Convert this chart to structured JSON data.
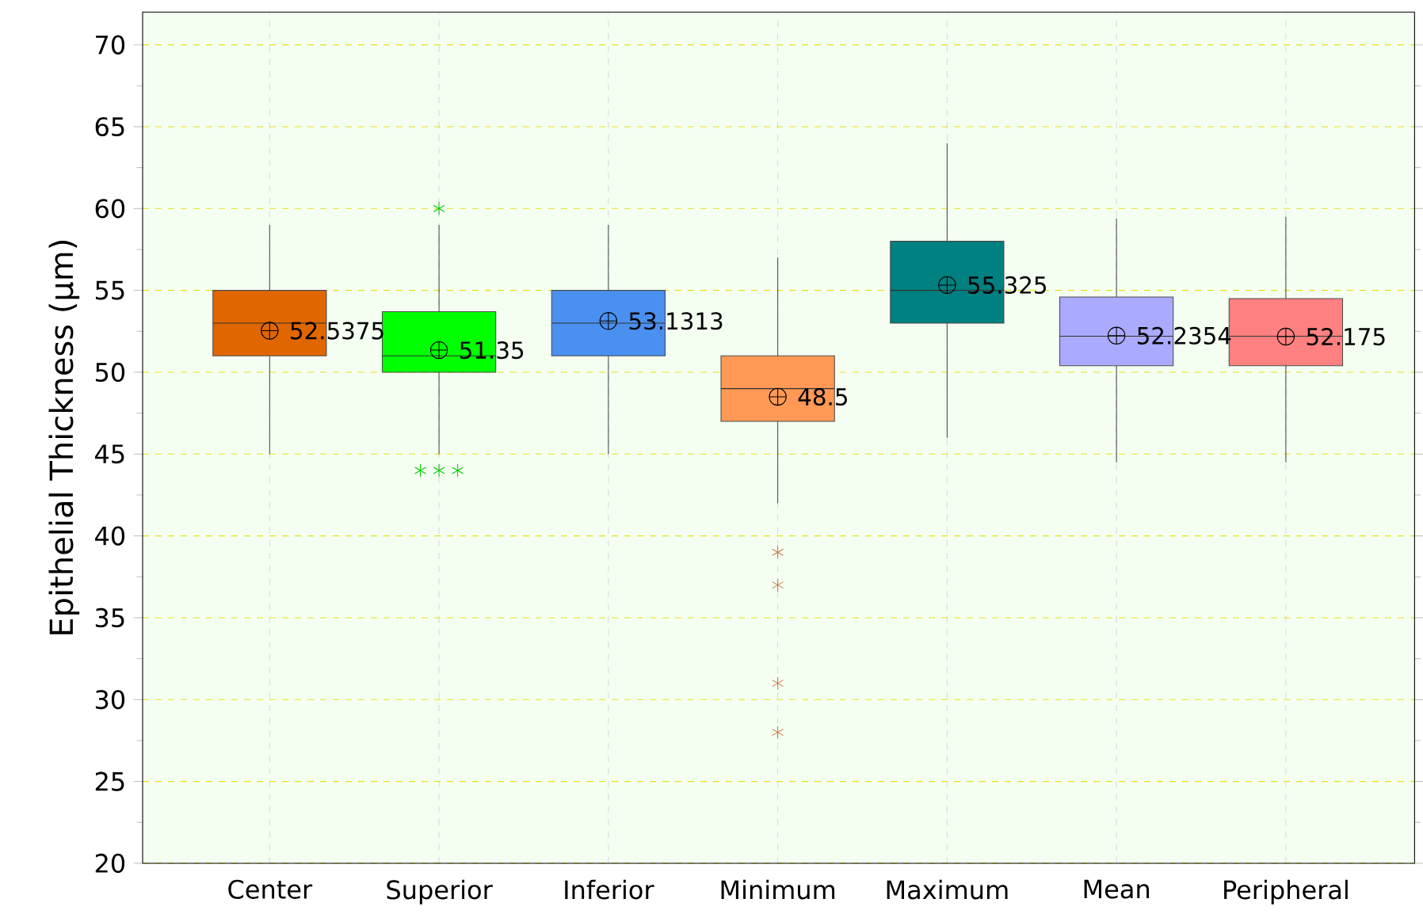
{
  "chart_data": {
    "type": "box",
    "ylabel": "Epithelial Thickness (µm)",
    "categories": [
      "Center",
      "Superior",
      "Inferior",
      "Minimum",
      "Maximum",
      "Mean",
      "Peripheral"
    ],
    "colors": [
      "#e06600",
      "#00ff00",
      "#4a90f0",
      "#ff9955",
      "#008080",
      "#aaaaff",
      "#ff8080"
    ],
    "boxes": [
      {
        "low": 45,
        "q1": 51,
        "median": 53,
        "q3": 55,
        "high": 59,
        "mean": 52.5375
      },
      {
        "low": 45,
        "q1": 50,
        "median": 51,
        "q3": 53.7,
        "high": 59,
        "mean": 51.35,
        "outliers": [
          60,
          44,
          44,
          44
        ]
      },
      {
        "low": 45,
        "q1": 51,
        "median": 53,
        "q3": 55,
        "high": 59,
        "mean": 53.1313
      },
      {
        "low": 42,
        "q1": 47,
        "median": 49,
        "q3": 51,
        "high": 57,
        "mean": 48.5,
        "outliers": [
          39,
          37,
          31,
          28
        ]
      },
      {
        "low": 46,
        "q1": 53,
        "median": 55,
        "q3": 58,
        "high": 64,
        "mean": 55.325
      },
      {
        "low": 44.5,
        "q1": 50.4,
        "median": 52.2,
        "q3": 54.6,
        "high": 59.4,
        "mean": 52.2354
      },
      {
        "low": 44.5,
        "q1": 50.4,
        "median": 52.2,
        "q3": 54.5,
        "high": 59.5,
        "mean": 52.175
      }
    ],
    "annotations": [
      "52.5375",
      "51.35",
      "53.1313",
      "48.5",
      "55.325",
      "52.2354",
      "52.175"
    ],
    "ylim": [
      20,
      72
    ],
    "yticks": [
      20,
      25,
      30,
      35,
      40,
      45,
      50,
      55,
      60,
      65,
      70
    ],
    "grid": true
  }
}
